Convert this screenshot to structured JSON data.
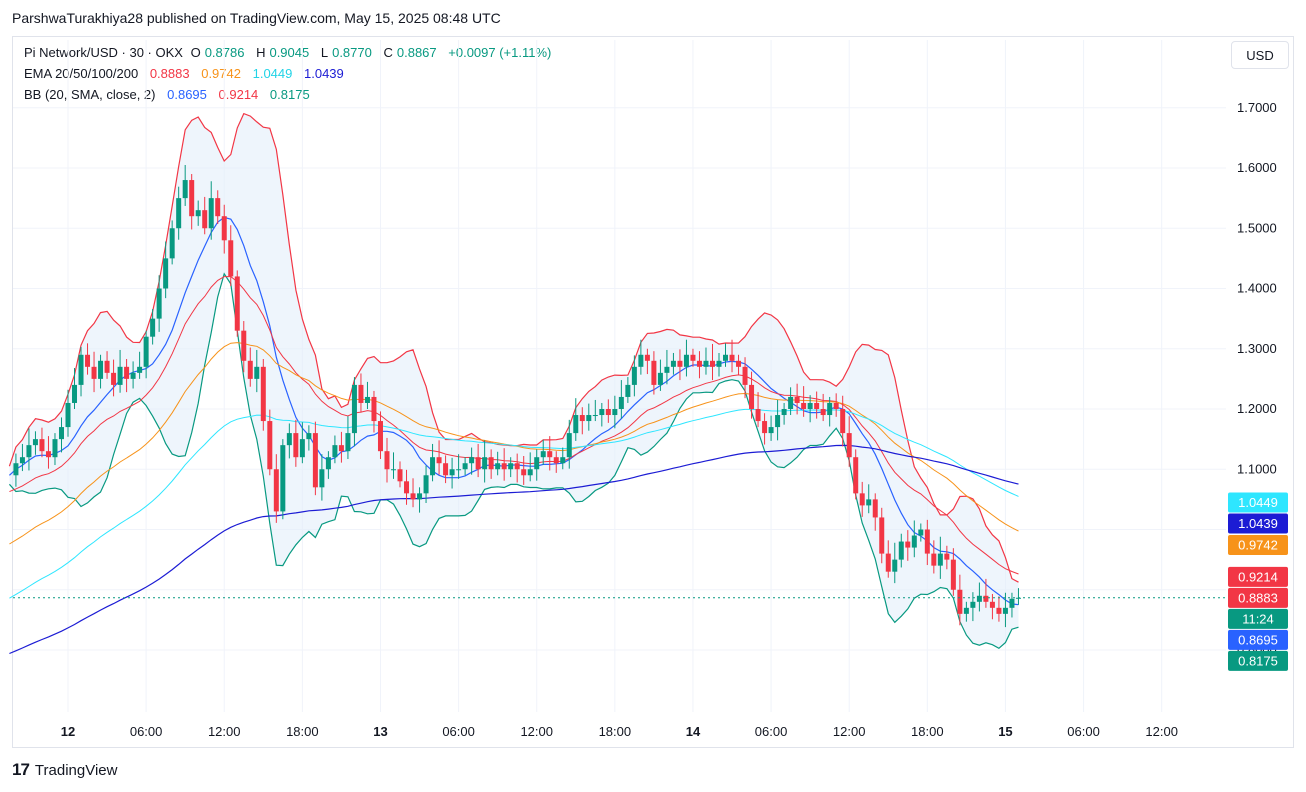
{
  "header": {
    "published_line": "ParshwaTurakhiya28 published on TradingView.com, May 15, 2025 08:48 UTC"
  },
  "legend": {
    "symbol": "Pi Network/USD · 30 · OKX",
    "ohlc": [
      {
        "k": "O",
        "v": "0.8786"
      },
      {
        "k": "H",
        "v": "0.9045"
      },
      {
        "k": "L",
        "v": "0.8770"
      },
      {
        "k": "C",
        "v": "0.8867"
      }
    ],
    "change": "+0.0097 (+1.11%)",
    "ema_label": "EMA 20/50/100/200",
    "ema_values": [
      "0.8883",
      "0.9742",
      "1.0449",
      "1.0439"
    ],
    "bb_label": "BB (20, SMA, close, 2)",
    "bb_values": [
      "0.8695",
      "0.9214",
      "0.8175"
    ]
  },
  "currency_button": "USD",
  "footer": {
    "brand": "TradingView"
  },
  "colors": {
    "up": "#089981",
    "down": "#f23645",
    "ema20": "#f23645",
    "ema50": "#f7931a",
    "ema100": "#2ee6ff",
    "ema200": "#1c1cd4",
    "bb_basis": "#2962ff",
    "bb_upper": "#f23645",
    "bb_lower": "#089981",
    "bb_fill": "#e3effa"
  },
  "chart_data": {
    "type": "candlestick",
    "price_axis_ticks": [
      "1.7000",
      "1.6000",
      "1.5000",
      "1.4000",
      "1.3000",
      "1.2000",
      "1.1000",
      "0.8000"
    ],
    "time_axis_ticks": [
      {
        "label": "12",
        "x_hours": 0,
        "bold": true
      },
      {
        "label": "06:00",
        "x_hours": 6
      },
      {
        "label": "12:00",
        "x_hours": 12
      },
      {
        "label": "18:00",
        "x_hours": 18
      },
      {
        "label": "13",
        "x_hours": 24,
        "bold": true
      },
      {
        "label": "06:00",
        "x_hours": 30
      },
      {
        "label": "12:00",
        "x_hours": 36
      },
      {
        "label": "18:00",
        "x_hours": 42
      },
      {
        "label": "14",
        "x_hours": 48,
        "bold": true
      },
      {
        "label": "06:00",
        "x_hours": 54
      },
      {
        "label": "12:00",
        "x_hours": 60
      },
      {
        "label": "18:00",
        "x_hours": 66
      },
      {
        "label": "15",
        "x_hours": 72,
        "bold": true
      },
      {
        "label": "06:00",
        "x_hours": 78
      },
      {
        "label": "12:00",
        "x_hours": 84
      }
    ],
    "price_tags": [
      {
        "label": "1.0449",
        "price": 1.0449,
        "bg": "#2ee6ff",
        "fg": "#131722"
      },
      {
        "label": "1.0439",
        "price": 1.0439,
        "bg": "#1c1cd4",
        "fg": "#ffffff"
      },
      {
        "label": "0.9742",
        "price": 0.9742,
        "bg": "#f7931a",
        "fg": "#ffffff"
      },
      {
        "label": "0.9214",
        "price": 0.9214,
        "bg": "#f23645",
        "fg": "#ffffff"
      },
      {
        "label": "0.8883",
        "price": 0.8883,
        "bg": "#f23645",
        "fg": "#ffffff"
      },
      {
        "label": "11:24",
        "price": 0.8867,
        "bg": "#089981",
        "fg": "#ffffff"
      },
      {
        "label": "0.8695",
        "price": 0.8695,
        "bg": "#2962ff",
        "fg": "#ffffff"
      },
      {
        "label": "0.8175",
        "price": 0.8175,
        "bg": "#089981",
        "fg": "#ffffff"
      }
    ],
    "close_price": 0.8867,
    "close_series": [
      [
        -4.5,
        1.09
      ],
      [
        -4,
        1.11
      ],
      [
        -3.5,
        1.12
      ],
      [
        -3,
        1.14
      ],
      [
        -2.5,
        1.15
      ],
      [
        -2,
        1.13
      ],
      [
        -1.5,
        1.12
      ],
      [
        -1,
        1.15
      ],
      [
        -0.5,
        1.17
      ],
      [
        0,
        1.21
      ],
      [
        0.5,
        1.24
      ],
      [
        1,
        1.29
      ],
      [
        1.5,
        1.27
      ],
      [
        2,
        1.25
      ],
      [
        2.5,
        1.28
      ],
      [
        3,
        1.26
      ],
      [
        3.5,
        1.24
      ],
      [
        4,
        1.27
      ],
      [
        4.5,
        1.25
      ],
      [
        5,
        1.26
      ],
      [
        5.5,
        1.27
      ],
      [
        6,
        1.32
      ],
      [
        6.5,
        1.35
      ],
      [
        7,
        1.4
      ],
      [
        7.5,
        1.45
      ],
      [
        8,
        1.5
      ],
      [
        8.5,
        1.55
      ],
      [
        9,
        1.58
      ],
      [
        9.5,
        1.52
      ],
      [
        10,
        1.53
      ],
      [
        10.5,
        1.5
      ],
      [
        11,
        1.55
      ],
      [
        11.5,
        1.52
      ],
      [
        12,
        1.48
      ],
      [
        12.5,
        1.42
      ],
      [
        13,
        1.33
      ],
      [
        13.5,
        1.28
      ],
      [
        14,
        1.25
      ],
      [
        14.5,
        1.27
      ],
      [
        15,
        1.18
      ],
      [
        15.5,
        1.1
      ],
      [
        16,
        1.03
      ],
      [
        16.5,
        1.14
      ],
      [
        17,
        1.16
      ],
      [
        17.5,
        1.12
      ],
      [
        18,
        1.15
      ],
      [
        18.5,
        1.16
      ],
      [
        19,
        1.07
      ],
      [
        19.5,
        1.1
      ],
      [
        20,
        1.12
      ],
      [
        20.5,
        1.14
      ],
      [
        21,
        1.13
      ],
      [
        21.5,
        1.16
      ],
      [
        22,
        1.24
      ],
      [
        22.5,
        1.21
      ],
      [
        23,
        1.22
      ],
      [
        23.5,
        1.18
      ],
      [
        24,
        1.13
      ],
      [
        24.5,
        1.1
      ],
      [
        25,
        1.1
      ],
      [
        25.5,
        1.08
      ],
      [
        26,
        1.06
      ],
      [
        26.5,
        1.05
      ],
      [
        27,
        1.06
      ],
      [
        27.5,
        1.09
      ],
      [
        28,
        1.12
      ],
      [
        28.5,
        1.11
      ],
      [
        29,
        1.09
      ],
      [
        29.5,
        1.1
      ],
      [
        30,
        1.1
      ],
      [
        30.5,
        1.11
      ],
      [
        31,
        1.12
      ],
      [
        31.5,
        1.1
      ],
      [
        32,
        1.12
      ],
      [
        32.5,
        1.1
      ],
      [
        33,
        1.11
      ],
      [
        33.5,
        1.1
      ],
      [
        34,
        1.11
      ],
      [
        34.5,
        1.1
      ],
      [
        35,
        1.09
      ],
      [
        35.5,
        1.1
      ],
      [
        36,
        1.12
      ],
      [
        36.5,
        1.13
      ],
      [
        37,
        1.12
      ],
      [
        37.5,
        1.11
      ],
      [
        38,
        1.12
      ],
      [
        38.5,
        1.16
      ],
      [
        39,
        1.19
      ],
      [
        39.5,
        1.18
      ],
      [
        40,
        1.19
      ],
      [
        40.5,
        1.19
      ],
      [
        41,
        1.2
      ],
      [
        41.5,
        1.19
      ],
      [
        42,
        1.2
      ],
      [
        42.5,
        1.22
      ],
      [
        43,
        1.24
      ],
      [
        43.5,
        1.27
      ],
      [
        44,
        1.29
      ],
      [
        44.5,
        1.28
      ],
      [
        45,
        1.24
      ],
      [
        45.5,
        1.26
      ],
      [
        46,
        1.27
      ],
      [
        46.5,
        1.28
      ],
      [
        47,
        1.27
      ],
      [
        47.5,
        1.29
      ],
      [
        48,
        1.28
      ],
      [
        48.5,
        1.27
      ],
      [
        49,
        1.28
      ],
      [
        49.5,
        1.27
      ],
      [
        50,
        1.28
      ],
      [
        50.5,
        1.29
      ],
      [
        51,
        1.28
      ],
      [
        51.5,
        1.27
      ],
      [
        52,
        1.24
      ],
      [
        52.5,
        1.2
      ],
      [
        53,
        1.18
      ],
      [
        53.5,
        1.16
      ],
      [
        54,
        1.17
      ],
      [
        54.5,
        1.19
      ],
      [
        55,
        1.2
      ],
      [
        55.5,
        1.22
      ],
      [
        56,
        1.21
      ],
      [
        56.5,
        1.2
      ],
      [
        57,
        1.21
      ],
      [
        57.5,
        1.2
      ],
      [
        58,
        1.19
      ],
      [
        58.5,
        1.21
      ],
      [
        59,
        1.2
      ],
      [
        59.5,
        1.16
      ],
      [
        60,
        1.12
      ],
      [
        60.5,
        1.06
      ],
      [
        61,
        1.04
      ],
      [
        61.5,
        1.05
      ],
      [
        62,
        1.02
      ],
      [
        62.5,
        0.96
      ],
      [
        63,
        0.93
      ],
      [
        63.5,
        0.95
      ],
      [
        64,
        0.98
      ],
      [
        64.5,
        0.97
      ],
      [
        65,
        0.99
      ],
      [
        65.5,
        1.0
      ],
      [
        66,
        0.96
      ],
      [
        66.5,
        0.94
      ],
      [
        67,
        0.96
      ],
      [
        67.5,
        0.95
      ],
      [
        68,
        0.9
      ],
      [
        68.5,
        0.86
      ],
      [
        69,
        0.87
      ],
      [
        69.5,
        0.88
      ],
      [
        70,
        0.89
      ],
      [
        70.5,
        0.88
      ],
      [
        71,
        0.87
      ],
      [
        71.5,
        0.86
      ],
      [
        72,
        0.87
      ],
      [
        72.5,
        0.885
      ],
      [
        73,
        0.8867
      ]
    ]
  }
}
